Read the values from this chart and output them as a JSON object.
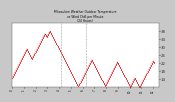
{
  "title": "Milwaukee Weather Outdoor Temperature vs Wind Chill per Minute (24 Hours)",
  "bg_color": "#c8c8c8",
  "plot_bg_color": "#ffffff",
  "line_color": "#dd0000",
  "ylim": [
    10,
    42
  ],
  "xlim": [
    0,
    287
  ],
  "yticks": [
    14,
    18,
    22,
    26,
    30,
    34,
    38
  ],
  "vlines": [
    96,
    144
  ],
  "temp_data": [
    14.5,
    15.0,
    15.5,
    16.0,
    16.5,
    17.0,
    17.5,
    18.0,
    18.5,
    19.0,
    19.5,
    20.0,
    20.5,
    21.0,
    21.5,
    22.0,
    22.5,
    23.0,
    23.5,
    24.0,
    24.5,
    25.0,
    25.5,
    26.0,
    26.5,
    27.0,
    27.5,
    28.0,
    28.5,
    29.0,
    28.5,
    28.0,
    27.5,
    27.0,
    26.5,
    26.0,
    25.5,
    25.0,
    24.5,
    24.0,
    24.5,
    25.0,
    25.5,
    26.0,
    26.5,
    27.0,
    27.5,
    28.0,
    28.5,
    29.0,
    29.5,
    30.0,
    30.5,
    31.0,
    31.5,
    32.0,
    32.5,
    33.0,
    33.5,
    34.0,
    34.5,
    35.0,
    35.5,
    36.0,
    36.5,
    36.5,
    36.0,
    35.5,
    35.0,
    35.5,
    36.0,
    36.5,
    37.0,
    37.5,
    38.0,
    37.5,
    37.0,
    36.5,
    36.0,
    35.5,
    35.0,
    34.5,
    34.0,
    33.5,
    33.0,
    32.5,
    32.0,
    31.5,
    31.0,
    30.5,
    30.0,
    29.5,
    29.0,
    28.5,
    28.0,
    27.5,
    27.0,
    26.5,
    26.0,
    25.5,
    25.0,
    24.5,
    24.0,
    23.5,
    23.0,
    22.5,
    22.0,
    21.5,
    21.0,
    20.5,
    20.0,
    19.5,
    19.0,
    18.5,
    18.0,
    17.5,
    17.0,
    16.5,
    16.0,
    15.5,
    15.0,
    14.5,
    14.0,
    13.5,
    13.0,
    12.5,
    12.0,
    11.5,
    11.0,
    10.5,
    10.5,
    11.0,
    11.5,
    12.0,
    12.5,
    13.0,
    13.5,
    14.0,
    14.5,
    15.0,
    15.5,
    16.0,
    16.5,
    17.0,
    17.5,
    18.0,
    18.5,
    19.0,
    19.5,
    20.0,
    20.5,
    21.0,
    21.5,
    22.0,
    22.5,
    23.0,
    23.5,
    23.0,
    22.5,
    22.0,
    21.5,
    21.0,
    20.5,
    20.0,
    19.5,
    19.0,
    18.5,
    18.0,
    17.5,
    17.0,
    16.5,
    16.0,
    15.5,
    15.0,
    14.5,
    14.0,
    13.5,
    13.0,
    12.5,
    12.0,
    11.5,
    11.0,
    10.5,
    11.0,
    11.5,
    12.0,
    12.5,
    13.0,
    13.5,
    14.0,
    14.5,
    15.0,
    15.5,
    16.0,
    16.5,
    17.0,
    17.5,
    18.0,
    18.5,
    19.0,
    19.5,
    20.0,
    20.5,
    21.0,
    21.5,
    22.0,
    22.5,
    22.0,
    21.5,
    21.0,
    20.5,
    20.0,
    19.5,
    19.0,
    18.5,
    18.0,
    17.5,
    17.0,
    16.5,
    16.0,
    15.5,
    15.0,
    14.5,
    14.0,
    13.5,
    13.0,
    12.5,
    12.0,
    11.5,
    11.0,
    10.5,
    10.0,
    10.5,
    11.0,
    11.5,
    12.0,
    12.5,
    13.0,
    13.5,
    14.0,
    14.5,
    14.0,
    13.5,
    13.0,
    12.5,
    12.0,
    11.5,
    11.0,
    10.5,
    10.0,
    10.0,
    10.5,
    11.0,
    11.5,
    12.0,
    12.5,
    13.0,
    13.5,
    14.0,
    14.5,
    15.0,
    15.5,
    16.0,
    16.5,
    17.0,
    17.5,
    18.0,
    18.5,
    19.0,
    19.5,
    20.0,
    20.5,
    21.0,
    21.5,
    22.0,
    22.5,
    23.0,
    22.5,
    22.0
  ]
}
